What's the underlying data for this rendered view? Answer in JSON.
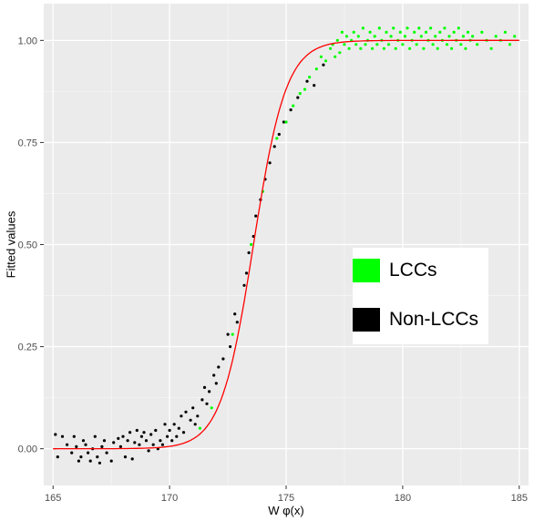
{
  "chart_data": {
    "type": "scatter",
    "xlabel": "W  φ(x)",
    "ylabel": "Fitted values",
    "xlim": [
      164.6,
      185.4
    ],
    "ylim": [
      -0.09,
      1.09
    ],
    "x_ticks": [
      165,
      170,
      175,
      180,
      185
    ],
    "y_ticks": [
      0.0,
      0.25,
      0.5,
      0.75,
      1.0
    ],
    "x_tick_labels": [
      "165",
      "170",
      "175",
      "180",
      "185"
    ],
    "y_tick_labels": [
      "0.00",
      "0.25",
      "0.50",
      "0.75",
      "1.00"
    ],
    "grid": true,
    "background": "#ebebeb",
    "legend": {
      "placement": "right",
      "items": [
        {
          "label": "LCCs",
          "color": "#00ff00"
        },
        {
          "label": "Non-LCCs",
          "color": "#000000"
        }
      ]
    },
    "fit_curve": {
      "type": "logistic",
      "color": "#ff0000",
      "midpoint": 173.6,
      "scale": 0.7,
      "x_range": [
        165,
        185
      ]
    },
    "series": [
      {
        "name": "Non-LCCs",
        "color": "#000000",
        "points": [
          [
            165.1,
            0.035
          ],
          [
            165.2,
            -0.02
          ],
          [
            165.4,
            0.03
          ],
          [
            165.6,
            0.01
          ],
          [
            165.8,
            -0.01
          ],
          [
            165.9,
            0.03
          ],
          [
            166.0,
            0.005
          ],
          [
            166.1,
            -0.03
          ],
          [
            166.2,
            -0.02
          ],
          [
            166.3,
            0.02
          ],
          [
            166.4,
            0.01
          ],
          [
            166.5,
            -0.01
          ],
          [
            166.6,
            -0.03
          ],
          [
            166.7,
            0.0
          ],
          [
            166.8,
            0.03
          ],
          [
            166.9,
            -0.02
          ],
          [
            167.0,
            -0.035
          ],
          [
            167.1,
            0.005
          ],
          [
            167.2,
            0.02
          ],
          [
            167.3,
            -0.01
          ],
          [
            167.5,
            -0.03
          ],
          [
            167.6,
            0.015
          ],
          [
            167.8,
            0.025
          ],
          [
            167.9,
            0.005
          ],
          [
            168.0,
            0.03
          ],
          [
            168.1,
            -0.02
          ],
          [
            168.2,
            0.02
          ],
          [
            168.3,
            0.04
          ],
          [
            168.4,
            -0.025
          ],
          [
            168.5,
            0.015
          ],
          [
            168.6,
            0.045
          ],
          [
            168.7,
            0.01
          ],
          [
            168.8,
            0.03
          ],
          [
            168.9,
            0.04
          ],
          [
            169.0,
            0.02
          ],
          [
            169.1,
            -0.005
          ],
          [
            169.2,
            0.035
          ],
          [
            169.3,
            0.01
          ],
          [
            169.4,
            0.045
          ],
          [
            169.5,
            0.0
          ],
          [
            169.6,
            0.02
          ],
          [
            169.7,
            0.01
          ],
          [
            169.8,
            0.06
          ],
          [
            169.9,
            0.03
          ],
          [
            170.0,
            0.045
          ],
          [
            170.1,
            0.02
          ],
          [
            170.2,
            0.06
          ],
          [
            170.3,
            0.03
          ],
          [
            170.4,
            0.05
          ],
          [
            170.5,
            0.08
          ],
          [
            170.6,
            0.04
          ],
          [
            170.7,
            0.09
          ],
          [
            170.9,
            0.07
          ],
          [
            171.0,
            0.1
          ],
          [
            171.1,
            0.06
          ],
          [
            171.2,
            0.08
          ],
          [
            171.4,
            0.12
          ],
          [
            171.5,
            0.15
          ],
          [
            171.6,
            0.11
          ],
          [
            171.7,
            0.14
          ],
          [
            171.9,
            0.18
          ],
          [
            172.0,
            0.16
          ],
          [
            172.1,
            0.2
          ],
          [
            172.3,
            0.22
          ],
          [
            172.5,
            0.28
          ],
          [
            172.6,
            0.25
          ],
          [
            172.8,
            0.33
          ],
          [
            172.9,
            0.31
          ],
          [
            173.2,
            0.4
          ],
          [
            173.3,
            0.43
          ],
          [
            173.4,
            0.48
          ],
          [
            173.6,
            0.52
          ],
          [
            173.7,
            0.57
          ],
          [
            173.9,
            0.61
          ],
          [
            174.1,
            0.66
          ],
          [
            174.3,
            0.7
          ],
          [
            174.5,
            0.74
          ],
          [
            174.7,
            0.77
          ],
          [
            174.9,
            0.8
          ],
          [
            175.2,
            0.83
          ],
          [
            175.5,
            0.86
          ],
          [
            175.9,
            0.9
          ],
          [
            176.2,
            0.89
          ],
          [
            176.6,
            0.94
          ]
        ]
      },
      {
        "name": "LCCs",
        "color": "#00ff00",
        "points": [
          [
            171.3,
            0.05
          ],
          [
            171.8,
            0.1
          ],
          [
            172.7,
            0.28
          ],
          [
            173.5,
            0.5
          ],
          [
            174.0,
            0.63
          ],
          [
            174.6,
            0.76
          ],
          [
            175.0,
            0.8
          ],
          [
            175.3,
            0.84
          ],
          [
            175.6,
            0.87
          ],
          [
            175.8,
            0.88
          ],
          [
            176.0,
            0.91
          ],
          [
            176.3,
            0.93
          ],
          [
            176.5,
            0.96
          ],
          [
            176.7,
            0.95
          ],
          [
            176.9,
            0.98
          ],
          [
            177.0,
            0.99
          ],
          [
            177.1,
            0.96
          ],
          [
            177.2,
            1.0
          ],
          [
            177.3,
            0.97
          ],
          [
            177.4,
            1.02
          ],
          [
            177.5,
            0.99
          ],
          [
            177.6,
            1.01
          ],
          [
            177.7,
            0.98
          ],
          [
            177.8,
            1.0
          ],
          [
            177.9,
            1.02
          ],
          [
            178.0,
            0.99
          ],
          [
            178.1,
            1.01
          ],
          [
            178.2,
            0.98
          ],
          [
            178.3,
            1.03
          ],
          [
            178.4,
            0.99
          ],
          [
            178.5,
            1.0
          ],
          [
            178.6,
            1.02
          ],
          [
            178.7,
            0.98
          ],
          [
            178.8,
            1.01
          ],
          [
            178.9,
            0.99
          ],
          [
            179.0,
            1.03
          ],
          [
            179.1,
            1.0
          ],
          [
            179.2,
            0.98
          ],
          [
            179.3,
            1.02
          ],
          [
            179.4,
            0.99
          ],
          [
            179.5,
            1.01
          ],
          [
            179.6,
            1.03
          ],
          [
            179.7,
            0.98
          ],
          [
            179.8,
            1.0
          ],
          [
            179.9,
            1.02
          ],
          [
            180.0,
            0.99
          ],
          [
            180.1,
            1.01
          ],
          [
            180.2,
            1.03
          ],
          [
            180.3,
            0.98
          ],
          [
            180.4,
            1.0
          ],
          [
            180.5,
            1.02
          ],
          [
            180.6,
            0.99
          ],
          [
            180.7,
            1.03
          ],
          [
            180.8,
            1.01
          ],
          [
            180.9,
            0.98
          ],
          [
            181.0,
            1.02
          ],
          [
            181.1,
            1.0
          ],
          [
            181.2,
            1.03
          ],
          [
            181.3,
            0.99
          ],
          [
            181.4,
            1.01
          ],
          [
            181.5,
            0.98
          ],
          [
            181.6,
            1.02
          ],
          [
            181.7,
            1.0
          ],
          [
            181.8,
            1.03
          ],
          [
            181.9,
            0.99
          ],
          [
            182.0,
            1.01
          ],
          [
            182.1,
            0.98
          ],
          [
            182.2,
            1.02
          ],
          [
            182.3,
            1.0
          ],
          [
            182.4,
            1.03
          ],
          [
            182.5,
            0.99
          ],
          [
            182.6,
            1.01
          ],
          [
            182.7,
            0.98
          ],
          [
            182.8,
            1.02
          ],
          [
            182.9,
            1.0
          ],
          [
            183.0,
            1.01
          ],
          [
            183.2,
            0.99
          ],
          [
            183.4,
            1.02
          ],
          [
            183.6,
            1.0
          ],
          [
            183.8,
            0.98
          ],
          [
            184.0,
            1.01
          ],
          [
            184.2,
            1.0
          ],
          [
            184.4,
            1.02
          ],
          [
            184.6,
            0.99
          ],
          [
            184.8,
            1.01
          ]
        ]
      }
    ]
  }
}
